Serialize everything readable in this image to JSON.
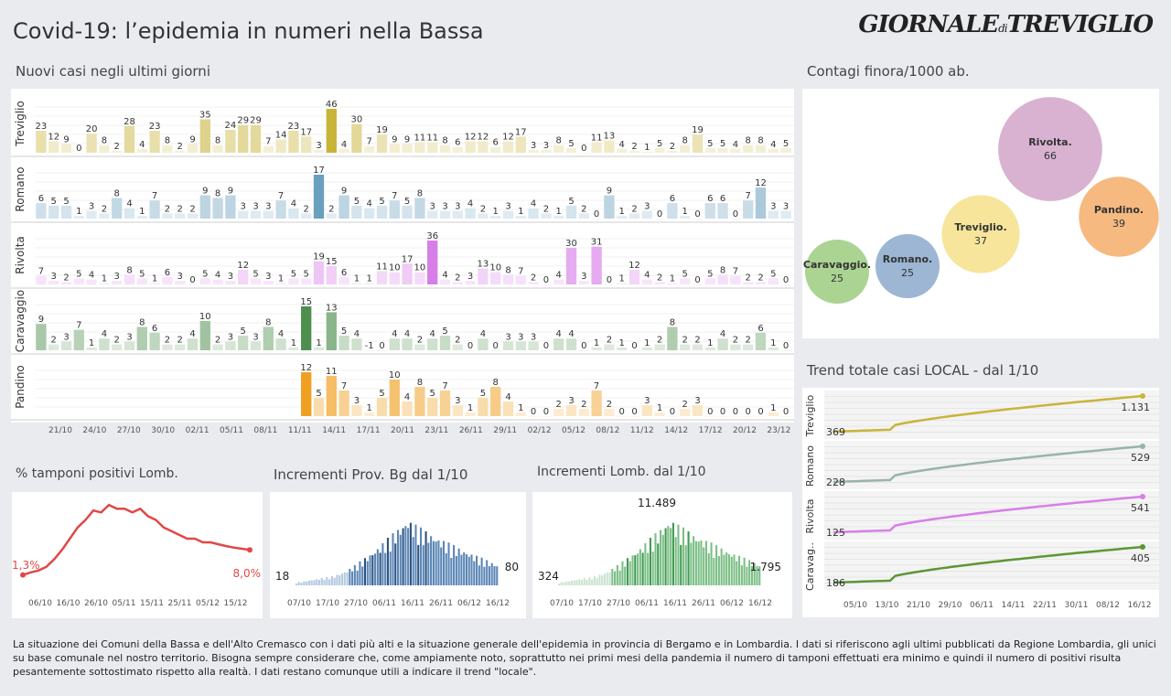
{
  "header": {
    "title": "Covid-19: l’epidemia  in numeri nella Bassa",
    "logo_main": "GIORNALE",
    "logo_di": "di",
    "logo_end": "TREVIGLIO"
  },
  "bars_title": "Nuovi casi negli ultimi   giorni",
  "bubble_title": "Contagi finora/1000 ab.",
  "trend_title": "Trend totale casi  LOCAL - dal 1/10",
  "tamponi_title": "% tamponi positivi Lomb.",
  "bg_title": "Incrementi Prov. Bg dal 1/10",
  "lomb_title": "Incrementi Lomb. dal 1/10",
  "footer": "La situazione dei Comuni della Bassa e dell'Alto Cremasco con i dati più alti e la situazione generale dell'epidemia in provincia di Bergamo e in Lombardia.  I dati si riferiscono agli ultimi pubblicati da Regione Lombardia, gli unici su base comunale nel  nostro territorio.  Bisogna sempre considerare che, come ampiamente noto, soprattutto nei primi mesi della pandemia il numero di tamponi effettuati era minimo e quindi il numero di positivi risulta pesantemente sottostimato rispetto alla realtà. I dati restano comunque utili a indicare il trend \"locale\".",
  "chart_data": [
    {
      "type": "bar",
      "name": "Nuovi casi",
      "x_ticks": [
        "21/10",
        "24/10",
        "27/10",
        "30/10",
        "02/11",
        "05/11",
        "08/11",
        "11/11",
        "14/11",
        "17/11",
        "20/11",
        "23/11",
        "26/11",
        "29/11",
        "02/12",
        "05/12",
        "08/12",
        "11/12",
        "14/12",
        "17/12",
        "20/12",
        "23/12"
      ],
      "series": [
        {
          "name": "Treviglio",
          "color": "#c9b43a",
          "values": [
            23,
            12,
            9,
            0,
            20,
            8,
            2,
            28,
            4,
            23,
            8,
            2,
            9,
            35,
            8,
            24,
            29,
            29,
            7,
            14,
            23,
            17,
            3,
            46,
            4,
            30,
            7,
            19,
            9,
            9,
            11,
            11,
            8,
            6,
            12,
            12,
            6,
            12,
            17,
            3,
            3,
            8,
            5,
            0,
            11,
            13,
            4,
            2,
            1,
            5,
            2,
            8,
            19,
            5,
            5,
            4,
            8,
            8,
            4,
            5
          ]
        },
        {
          "name": "Romano",
          "color": "#6a9fbe",
          "values": [
            6,
            5,
            5,
            1,
            3,
            2,
            8,
            4,
            1,
            7,
            2,
            2,
            2,
            9,
            8,
            9,
            3,
            3,
            3,
            7,
            4,
            2,
            17,
            2,
            9,
            5,
            4,
            5,
            7,
            5,
            8,
            3,
            3,
            3,
            4,
            2,
            1,
            3,
            1,
            4,
            2,
            1,
            5,
            2,
            0,
            9,
            1,
            2,
            3,
            0,
            6,
            1,
            0,
            6,
            6,
            0,
            7,
            12,
            3,
            3
          ]
        },
        {
          "name": "Rivolta",
          "color": "#d87ee8",
          "values": [
            7,
            3,
            2,
            5,
            4,
            1,
            3,
            8,
            5,
            1,
            6,
            3,
            0,
            5,
            4,
            3,
            12,
            5,
            3,
            1,
            5,
            5,
            19,
            15,
            6,
            1,
            1,
            11,
            10,
            17,
            10,
            36,
            4,
            2,
            3,
            13,
            10,
            8,
            7,
            2,
            0,
            4,
            30,
            3,
            31,
            0,
            1,
            12,
            4,
            2,
            1,
            5,
            0,
            5,
            8,
            7,
            2,
            2,
            5,
            0
          ]
        },
        {
          "name": "Caravaggio",
          "color": "#4e8f4e",
          "values": [
            9,
            2,
            3,
            7,
            1,
            4,
            2,
            3,
            8,
            6,
            2,
            2,
            4,
            10,
            2,
            3,
            5,
            3,
            8,
            4,
            1,
            15,
            1,
            13,
            5,
            4,
            -1,
            0,
            4,
            4,
            2,
            4,
            5,
            2,
            0,
            4,
            0,
            3,
            3,
            3,
            0,
            4,
            4,
            0,
            1,
            2,
            1,
            0,
            1,
            2,
            8,
            2,
            2,
            1,
            4,
            2,
            2,
            6,
            1,
            0
          ]
        },
        {
          "name": "Pandino",
          "color": "#f0a020",
          "values": [
            null,
            null,
            null,
            null,
            null,
            null,
            null,
            null,
            null,
            null,
            null,
            null,
            null,
            null,
            null,
            null,
            null,
            null,
            null,
            null,
            null,
            12,
            5,
            11,
            7,
            3,
            1,
            5,
            10,
            4,
            8,
            5,
            7,
            3,
            1,
            5,
            8,
            4,
            1,
            0,
            0,
            2,
            3,
            2,
            7,
            2,
            0,
            0,
            3,
            1,
            0,
            2,
            3,
            0,
            0,
            0,
            0,
            0,
            1,
            0
          ]
        }
      ]
    },
    {
      "type": "scatter",
      "name": "Contagi finora/1000 ab.",
      "points": [
        {
          "label": "Caravaggio.",
          "value": 25,
          "color": "#9ccc80"
        },
        {
          "label": "Romano.",
          "value": 25,
          "color": "#8ba9cc"
        },
        {
          "label": "Treviglio.",
          "value": 37,
          "color": "#f4e18a"
        },
        {
          "label": "Rivolta.",
          "value": 66,
          "color": "#d3a5c9"
        },
        {
          "label": "Pandino.",
          "value": 39,
          "color": "#f4ad6a"
        }
      ]
    },
    {
      "type": "line",
      "name": "Trend totale casi LOCAL",
      "x_ticks": [
        "05/10",
        "13/10",
        "21/10",
        "29/10",
        "06/11",
        "14/11",
        "22/11",
        "30/11",
        "08/12",
        "16/12"
      ],
      "series": [
        {
          "name": "Treviglio",
          "label": "Treviglio",
          "start": 369,
          "end": 1131,
          "start_label": "369",
          "end_label": "1.131",
          "color": "#c9b43a"
        },
        {
          "name": "Romano",
          "label": "Romano",
          "start": 228,
          "end": 529,
          "start_label": "228",
          "end_label": "529",
          "color": "#98b4aa"
        },
        {
          "name": "Rivolta",
          "label": "Rivolta",
          "start": 125,
          "end": 541,
          "start_label": "125",
          "end_label": "541",
          "color": "#d87ee8"
        },
        {
          "name": "Caravaggio",
          "label": "Caravag..",
          "start": 186,
          "end": 405,
          "start_label": "186",
          "end_label": "405",
          "color": "#5c9636"
        }
      ]
    },
    {
      "type": "line",
      "name": "% tamponi positivi Lomb.",
      "x_ticks": [
        "06/10",
        "16/10",
        "26/10",
        "05/11",
        "15/11",
        "25/11",
        "05/12",
        "15/12"
      ],
      "start_label": "1,3%",
      "end_label": "8,0%",
      "values": [
        1.3,
        2.0,
        2.5,
        3.5,
        5.5,
        8,
        11,
        14,
        16,
        18.5,
        18,
        20,
        19,
        19,
        18,
        19,
        17,
        16,
        14,
        13,
        12,
        11,
        11,
        10,
        10,
        9.5,
        9,
        8.6,
        8.3,
        8.0
      ]
    },
    {
      "type": "bar",
      "name": "Incrementi Prov. Bg dal 1/10",
      "x_ticks": [
        "07/10",
        "17/10",
        "27/10",
        "06/11",
        "16/11",
        "26/11",
        "06/12",
        "16/12"
      ],
      "start_label": "18",
      "end_label": "80",
      "peak": 200
    },
    {
      "type": "bar",
      "name": "Incrementi Lomb. dal 1/10",
      "x_ticks": [
        "07/10",
        "17/10",
        "27/10",
        "06/11",
        "16/11",
        "26/11",
        "06/12",
        "16/12"
      ],
      "start_label": "324",
      "peak_label": "11.489",
      "end_label": "1.795"
    }
  ]
}
